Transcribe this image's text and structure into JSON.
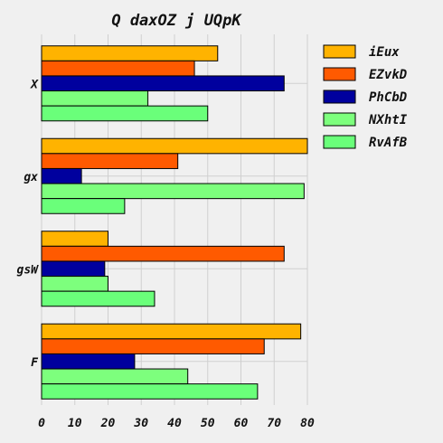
{
  "chart_data": {
    "type": "bar",
    "orientation": "horizontal",
    "title": "Q daxOZ j UQpK",
    "xlabel": "",
    "ylabel": "",
    "categories": [
      "X",
      "gx",
      "gsW",
      "F"
    ],
    "xlim": [
      0,
      80
    ],
    "xticks": [
      0,
      10,
      20,
      30,
      40,
      50,
      60,
      70,
      80
    ],
    "grid": true,
    "legend_position": "right",
    "series": [
      {
        "name": "iEux",
        "color": "#ffb300",
        "values": [
          53,
          80,
          20,
          78
        ]
      },
      {
        "name": "EZvkD",
        "color": "#ff5a00",
        "values": [
          46,
          41,
          73,
          67
        ]
      },
      {
        "name": "PhCbD",
        "color": "#00009e",
        "values": [
          73,
          12,
          19,
          28
        ]
      },
      {
        "name": "NXhtI",
        "color": "#7dff7d",
        "values": [
          32,
          79,
          20,
          44
        ]
      },
      {
        "name": "RvAfB",
        "color": "#6aff7a",
        "values": [
          50,
          25,
          34,
          65
        ]
      }
    ]
  }
}
